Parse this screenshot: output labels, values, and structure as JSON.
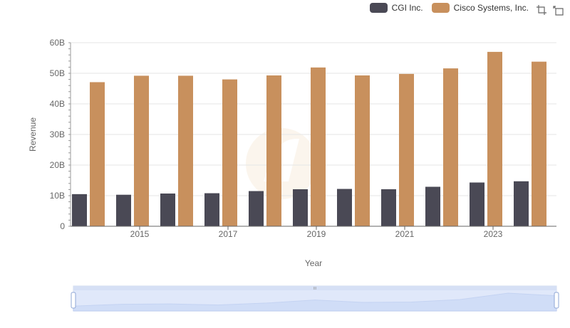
{
  "legend": {
    "items": [
      {
        "label": "CGI Inc.",
        "color": "#4a4955"
      },
      {
        "label": "Cisco Systems, Inc.",
        "color": "#c8905d"
      }
    ]
  },
  "toolbar": {
    "icons": [
      "zoom-select-icon",
      "zoom-reset-icon"
    ]
  },
  "chart_data": {
    "type": "bar",
    "xlabel": "Year",
    "ylabel": "Revenue",
    "categories": [
      "2014",
      "2015",
      "2016",
      "2017",
      "2018",
      "2019",
      "2020",
      "2021",
      "2022",
      "2023",
      "2024"
    ],
    "x_tick_labels": [
      "2015",
      "2017",
      "2019",
      "2021",
      "2023"
    ],
    "y_tick_labels": [
      "0",
      "10B",
      "20B",
      "30B",
      "40B",
      "50B",
      "60B"
    ],
    "ylim": [
      0,
      60000000000
    ],
    "grid": true,
    "legend_position": "top-right",
    "series": [
      {
        "name": "CGI Inc.",
        "color": "#4a4955",
        "values": [
          10500000000,
          10300000000,
          10700000000,
          10800000000,
          11500000000,
          12100000000,
          12200000000,
          12100000000,
          12900000000,
          14300000000,
          14700000000
        ]
      },
      {
        "name": "Cisco Systems, Inc.",
        "color": "#c8905d",
        "values": [
          47100000000,
          49200000000,
          49200000000,
          48000000000,
          49300000000,
          51900000000,
          49300000000,
          49800000000,
          51600000000,
          57000000000,
          53800000000
        ]
      }
    ]
  },
  "data_zoom": {
    "start_percent": 0,
    "end_percent": 100,
    "handle_label": "III"
  }
}
